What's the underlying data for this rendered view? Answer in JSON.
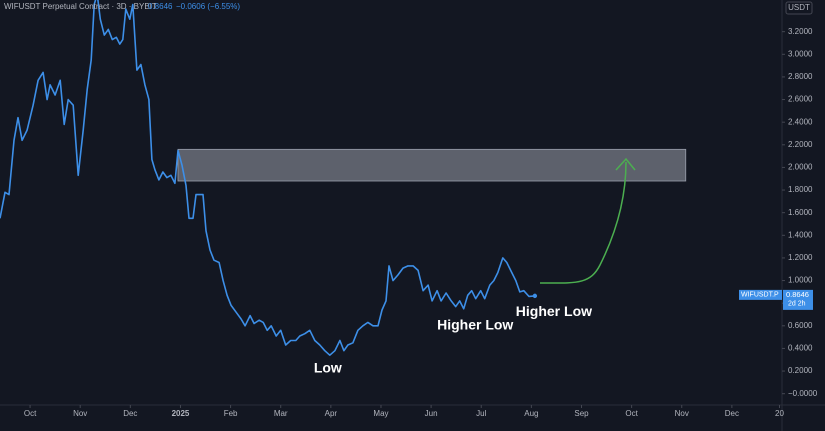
{
  "chart_data": {
    "type": "line",
    "header": {
      "symbol": "WIFUSDT Perpetual Contract · 3D · BYBIT",
      "last": "0.8646",
      "change": "−0.0606 (−6.55%)"
    },
    "currency": "USDT",
    "price_tag": {
      "symbol": "WIFUSDT.P",
      "price": "0.8646",
      "countdown": "2d 2h"
    },
    "x": [
      -0.6,
      -0.5,
      -0.42,
      -0.32,
      -0.24,
      -0.16,
      -0.06,
      0.06,
      0.16,
      0.26,
      0.34,
      0.4,
      0.5,
      0.6,
      0.68,
      0.76,
      0.86,
      0.96,
      1.06,
      1.14,
      1.22,
      1.28,
      1.34,
      1.4,
      1.48,
      1.56,
      1.64,
      1.72,
      1.79,
      1.85,
      1.91,
      1.99,
      2.05,
      2.13,
      2.21,
      2.29,
      2.37,
      2.43,
      2.49,
      2.57,
      2.65,
      2.73,
      2.81,
      2.89,
      2.95,
      3.03,
      3.11,
      3.17,
      3.25,
      3.31,
      3.45,
      3.51,
      3.59,
      3.67,
      3.77,
      3.85,
      3.93,
      4.01,
      4.11,
      4.21,
      4.29,
      4.39,
      4.47,
      4.57,
      4.65,
      4.73,
      4.81,
      4.91,
      5.0,
      5.1,
      5.2,
      5.3,
      5.38,
      5.48,
      5.58,
      5.68,
      5.78,
      5.88,
      5.98,
      6.08,
      6.18,
      6.26,
      6.34,
      6.44,
      6.54,
      6.64,
      6.74,
      6.84,
      6.94,
      7.02,
      7.1,
      7.16,
      7.24,
      7.34,
      7.44,
      7.54,
      7.64,
      7.74,
      7.84,
      7.94,
      8.02,
      8.12,
      8.2,
      8.3,
      8.4,
      8.49,
      8.57,
      8.65,
      8.73,
      8.81,
      8.89,
      8.99,
      9.07,
      9.17,
      9.25,
      9.33,
      9.43,
      9.51,
      9.61,
      9.69,
      9.77,
      9.85,
      9.95,
      10.07
    ],
    "series": [
      {
        "name": "WIFUSDT.P",
        "color": "#3d8fe8",
        "values": [
          1.55,
          1.78,
          1.76,
          2.24,
          2.44,
          2.24,
          2.33,
          2.55,
          2.77,
          2.84,
          2.6,
          2.73,
          2.64,
          2.77,
          2.38,
          2.6,
          2.55,
          1.93,
          2.33,
          2.69,
          2.95,
          3.44,
          3.53,
          3.31,
          3.17,
          3.22,
          3.13,
          3.15,
          3.09,
          3.13,
          3.4,
          3.31,
          3.44,
          2.86,
          2.91,
          2.73,
          2.6,
          2.07,
          1.98,
          1.89,
          1.96,
          1.91,
          1.93,
          1.86,
          2.15,
          2.02,
          1.84,
          1.55,
          1.55,
          1.76,
          1.76,
          1.44,
          1.27,
          1.18,
          1.16,
          1.0,
          0.87,
          0.78,
          0.72,
          0.66,
          0.6,
          0.69,
          0.62,
          0.65,
          0.63,
          0.56,
          0.6,
          0.51,
          0.56,
          0.43,
          0.47,
          0.47,
          0.51,
          0.53,
          0.56,
          0.47,
          0.43,
          0.38,
          0.34,
          0.38,
          0.47,
          0.38,
          0.43,
          0.45,
          0.56,
          0.6,
          0.63,
          0.6,
          0.6,
          0.74,
          0.82,
          1.13,
          1.0,
          1.05,
          1.11,
          1.13,
          1.13,
          1.09,
          0.91,
          0.96,
          0.82,
          0.91,
          0.82,
          0.89,
          0.82,
          0.77,
          0.82,
          0.75,
          0.87,
          0.91,
          0.84,
          0.91,
          0.84,
          0.96,
          1.0,
          1.07,
          1.2,
          1.16,
          1.07,
          1.0,
          0.9,
          0.91,
          0.86,
          0.8646
        ]
      }
    ],
    "zone": {
      "x": [
        2.95,
        13.08
      ],
      "y": [
        1.88,
        2.16
      ],
      "color": "#b7bcc8"
    },
    "annotations": [
      {
        "text": "Low",
        "x": 5.94,
        "y": 0.22
      },
      {
        "text": "Higher Low",
        "x": 8.88,
        "y": 0.6
      },
      {
        "text": "Higher Low",
        "x": 10.45,
        "y": 0.72
      }
    ],
    "xlim": [
      -0.6,
      15.0
    ],
    "ylim": [
      -0.1,
      3.48
    ],
    "xticks": [
      {
        "value": 0,
        "label": "Oct"
      },
      {
        "value": 1,
        "label": "Nov"
      },
      {
        "value": 2,
        "label": "Dec"
      },
      {
        "value": 3,
        "label": "2025"
      },
      {
        "value": 4,
        "label": "Feb"
      },
      {
        "value": 5,
        "label": "Mar"
      },
      {
        "value": 6,
        "label": "Apr"
      },
      {
        "value": 7,
        "label": "May"
      },
      {
        "value": 8,
        "label": "Jun"
      },
      {
        "value": 9,
        "label": "Jul"
      },
      {
        "value": 10,
        "label": "Aug"
      },
      {
        "value": 11,
        "label": "Sep"
      },
      {
        "value": 12,
        "label": "Oct"
      },
      {
        "value": 13,
        "label": "Nov"
      },
      {
        "value": 14,
        "label": "Dec"
      },
      {
        "value": 14.95,
        "label": "20"
      }
    ],
    "yticks": [
      {
        "value": 3.2,
        "label": "3.2000"
      },
      {
        "value": 3.0,
        "label": "3.0000"
      },
      {
        "value": 2.8,
        "label": "2.8000"
      },
      {
        "value": 2.6,
        "label": "2.6000"
      },
      {
        "value": 2.4,
        "label": "2.4000"
      },
      {
        "value": 2.2,
        "label": "2.2000"
      },
      {
        "value": 2.0,
        "label": "2.0000"
      },
      {
        "value": 1.8,
        "label": "1.8000"
      },
      {
        "value": 1.6,
        "label": "1.6000"
      },
      {
        "value": 1.4,
        "label": "1.4000"
      },
      {
        "value": 1.2,
        "label": "1.2000"
      },
      {
        "value": 1.0,
        "label": "1.0000"
      },
      {
        "value": 0.8,
        "label": "0.8000"
      },
      {
        "value": 0.6,
        "label": "0.6000"
      },
      {
        "value": 0.4,
        "label": "0.4000"
      },
      {
        "value": 0.2,
        "label": "0.2000"
      },
      {
        "value": 0,
        "label": "−0.0000"
      }
    ],
    "grid": false
  }
}
